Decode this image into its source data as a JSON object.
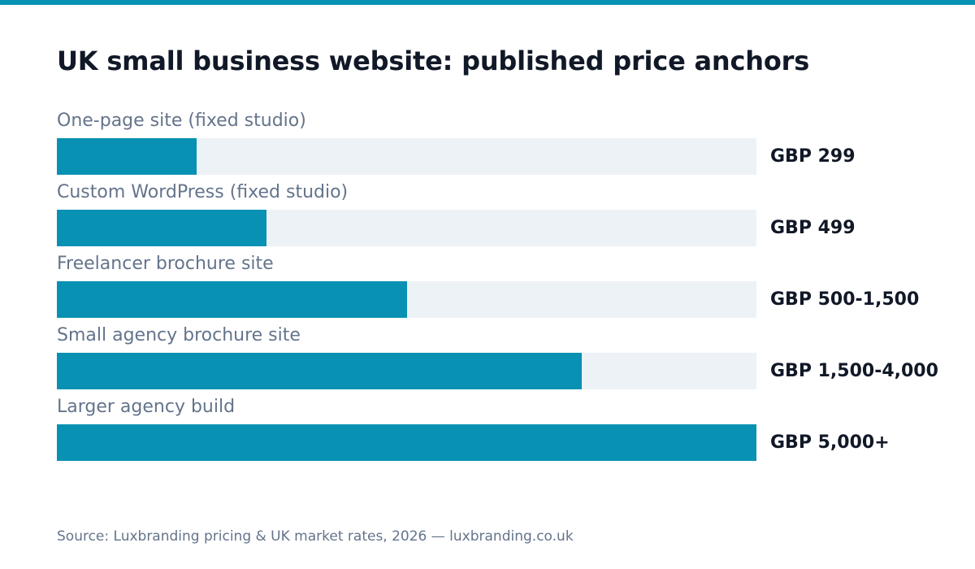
{
  "colors": {
    "accent": "#0891b2",
    "track": "#edf2f7",
    "title": "#111827",
    "muted": "#64748b"
  },
  "chart_data": {
    "type": "bar",
    "orientation": "horizontal",
    "title": "UK small business website: published price anchors",
    "categories": [
      "One-page site (fixed studio)",
      "Custom WordPress (fixed studio)",
      "Freelancer brochure site",
      "Small agency brochure site",
      "Larger agency build"
    ],
    "value_labels": [
      "GBP 299",
      "GBP 499",
      "GBP 500-1,500",
      "GBP 1,500-4,000",
      "GBP 5,000+"
    ],
    "fill_fractions": [
      0.2,
      0.3,
      0.5,
      0.75,
      1.0
    ],
    "grid": false,
    "legend": "none"
  },
  "source": "Source: Luxbranding pricing & UK market rates, 2026 — luxbranding.co.uk"
}
